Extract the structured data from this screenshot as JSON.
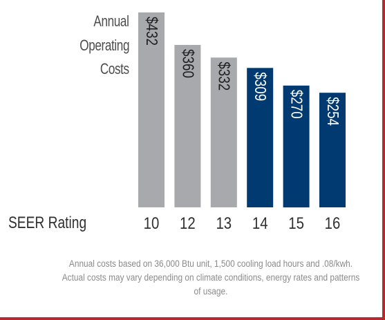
{
  "chart_data": {
    "type": "bar",
    "title_lines": [
      "Annual",
      "Operating",
      "Costs"
    ],
    "xlabel": "SEER Rating",
    "ylabel": "",
    "categories": [
      "10",
      "12",
      "13",
      "14",
      "15",
      "16"
    ],
    "values": [
      432,
      360,
      332,
      309,
      270,
      254
    ],
    "value_labels": [
      "$432",
      "$360",
      "$332",
      "$309",
      "$270",
      "$254"
    ],
    "bar_colors": [
      "#a7a9ac",
      "#a7a9ac",
      "#a7a9ac",
      "#003a70",
      "#003a70",
      "#003a70"
    ],
    "ylim": [
      0,
      432
    ],
    "grid": false,
    "footnote": "Annual costs based on 36,000 Btu unit, 1,500 cooling load hours and .08/kwh. Actual costs may vary depending on climate conditions, energy rates and patterns of usage."
  },
  "colors": {
    "gray_bar": "#a7a9ac",
    "navy_bar": "#003a70",
    "frame_accent": "#b52a2f"
  }
}
